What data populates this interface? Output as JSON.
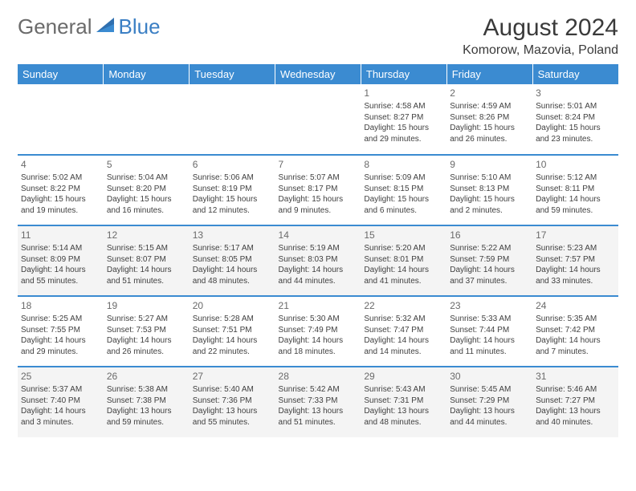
{
  "brand": {
    "word1": "General",
    "word2": "Blue"
  },
  "title": "August 2024",
  "location": "Komorow, Mazovia, Poland",
  "header_bg": "#3b8bd1",
  "divider_color": "#3b8bd1",
  "shade_bg": "#f4f4f4",
  "days_of_week": [
    "Sunday",
    "Monday",
    "Tuesday",
    "Wednesday",
    "Thursday",
    "Friday",
    "Saturday"
  ],
  "weeks": [
    {
      "shaded": false,
      "cells": [
        null,
        null,
        null,
        null,
        {
          "n": "1",
          "sr": "4:58 AM",
          "ss": "8:27 PM",
          "dl": "15 hours and 29 minutes."
        },
        {
          "n": "2",
          "sr": "4:59 AM",
          "ss": "8:26 PM",
          "dl": "15 hours and 26 minutes."
        },
        {
          "n": "3",
          "sr": "5:01 AM",
          "ss": "8:24 PM",
          "dl": "15 hours and 23 minutes."
        }
      ]
    },
    {
      "shaded": false,
      "cells": [
        {
          "n": "4",
          "sr": "5:02 AM",
          "ss": "8:22 PM",
          "dl": "15 hours and 19 minutes."
        },
        {
          "n": "5",
          "sr": "5:04 AM",
          "ss": "8:20 PM",
          "dl": "15 hours and 16 minutes."
        },
        {
          "n": "6",
          "sr": "5:06 AM",
          "ss": "8:19 PM",
          "dl": "15 hours and 12 minutes."
        },
        {
          "n": "7",
          "sr": "5:07 AM",
          "ss": "8:17 PM",
          "dl": "15 hours and 9 minutes."
        },
        {
          "n": "8",
          "sr": "5:09 AM",
          "ss": "8:15 PM",
          "dl": "15 hours and 6 minutes."
        },
        {
          "n": "9",
          "sr": "5:10 AM",
          "ss": "8:13 PM",
          "dl": "15 hours and 2 minutes."
        },
        {
          "n": "10",
          "sr": "5:12 AM",
          "ss": "8:11 PM",
          "dl": "14 hours and 59 minutes."
        }
      ]
    },
    {
      "shaded": true,
      "cells": [
        {
          "n": "11",
          "sr": "5:14 AM",
          "ss": "8:09 PM",
          "dl": "14 hours and 55 minutes."
        },
        {
          "n": "12",
          "sr": "5:15 AM",
          "ss": "8:07 PM",
          "dl": "14 hours and 51 minutes."
        },
        {
          "n": "13",
          "sr": "5:17 AM",
          "ss": "8:05 PM",
          "dl": "14 hours and 48 minutes."
        },
        {
          "n": "14",
          "sr": "5:19 AM",
          "ss": "8:03 PM",
          "dl": "14 hours and 44 minutes."
        },
        {
          "n": "15",
          "sr": "5:20 AM",
          "ss": "8:01 PM",
          "dl": "14 hours and 41 minutes."
        },
        {
          "n": "16",
          "sr": "5:22 AM",
          "ss": "7:59 PM",
          "dl": "14 hours and 37 minutes."
        },
        {
          "n": "17",
          "sr": "5:23 AM",
          "ss": "7:57 PM",
          "dl": "14 hours and 33 minutes."
        }
      ]
    },
    {
      "shaded": false,
      "cells": [
        {
          "n": "18",
          "sr": "5:25 AM",
          "ss": "7:55 PM",
          "dl": "14 hours and 29 minutes."
        },
        {
          "n": "19",
          "sr": "5:27 AM",
          "ss": "7:53 PM",
          "dl": "14 hours and 26 minutes."
        },
        {
          "n": "20",
          "sr": "5:28 AM",
          "ss": "7:51 PM",
          "dl": "14 hours and 22 minutes."
        },
        {
          "n": "21",
          "sr": "5:30 AM",
          "ss": "7:49 PM",
          "dl": "14 hours and 18 minutes."
        },
        {
          "n": "22",
          "sr": "5:32 AM",
          "ss": "7:47 PM",
          "dl": "14 hours and 14 minutes."
        },
        {
          "n": "23",
          "sr": "5:33 AM",
          "ss": "7:44 PM",
          "dl": "14 hours and 11 minutes."
        },
        {
          "n": "24",
          "sr": "5:35 AM",
          "ss": "7:42 PM",
          "dl": "14 hours and 7 minutes."
        }
      ]
    },
    {
      "shaded": true,
      "cells": [
        {
          "n": "25",
          "sr": "5:37 AM",
          "ss": "7:40 PM",
          "dl": "14 hours and 3 minutes."
        },
        {
          "n": "26",
          "sr": "5:38 AM",
          "ss": "7:38 PM",
          "dl": "13 hours and 59 minutes."
        },
        {
          "n": "27",
          "sr": "5:40 AM",
          "ss": "7:36 PM",
          "dl": "13 hours and 55 minutes."
        },
        {
          "n": "28",
          "sr": "5:42 AM",
          "ss": "7:33 PM",
          "dl": "13 hours and 51 minutes."
        },
        {
          "n": "29",
          "sr": "5:43 AM",
          "ss": "7:31 PM",
          "dl": "13 hours and 48 minutes."
        },
        {
          "n": "30",
          "sr": "5:45 AM",
          "ss": "7:29 PM",
          "dl": "13 hours and 44 minutes."
        },
        {
          "n": "31",
          "sr": "5:46 AM",
          "ss": "7:27 PM",
          "dl": "13 hours and 40 minutes."
        }
      ]
    }
  ],
  "labels": {
    "sunrise": "Sunrise:",
    "sunset": "Sunset:",
    "daylight": "Daylight:"
  }
}
